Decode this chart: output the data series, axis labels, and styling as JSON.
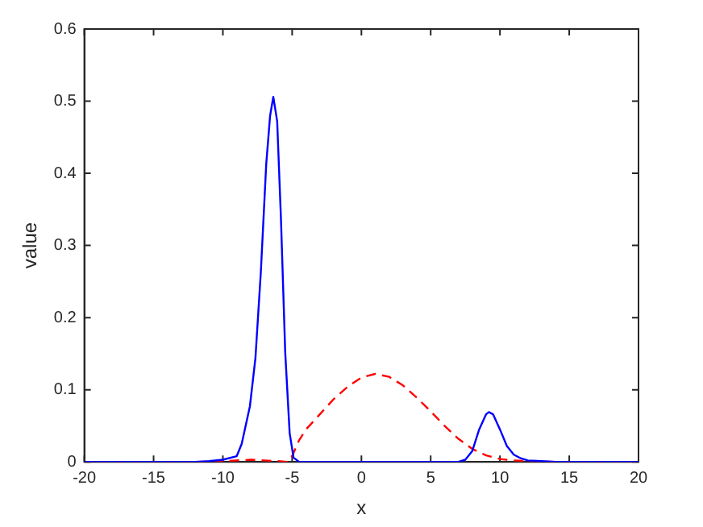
{
  "chart_data": {
    "type": "line",
    "xlabel": "x",
    "ylabel": "value",
    "xlim": [
      -20,
      20
    ],
    "xticks": [
      -20,
      -15,
      -10,
      -5,
      0,
      5,
      10,
      15,
      20
    ],
    "ylim": [
      0,
      0.6
    ],
    "yticks": [
      0,
      0.1,
      0.2,
      0.3,
      0.4,
      0.5,
      0.6
    ],
    "grid": false,
    "legend": false,
    "marker": "none",
    "series": [
      {
        "color": "#0000ff",
        "line_style": "solid",
        "x": [
          -20,
          -12,
          -11,
          -10,
          -9,
          -8.64,
          -8.05,
          -7.65,
          -7.26,
          -6.87,
          -6.59,
          -6.36,
          -6.08,
          -5.81,
          -5.5,
          -5.18,
          -4.9,
          -4.5,
          7,
          7.5,
          8,
          8.5,
          9,
          9.2,
          9.5,
          10,
          10.5,
          11,
          11.5,
          12,
          13,
          14,
          20
        ],
        "values": [
          0,
          0,
          0.001,
          0.003,
          0.008,
          0.025,
          0.077,
          0.144,
          0.263,
          0.413,
          0.48,
          0.506,
          0.472,
          0.338,
          0.152,
          0.04,
          0.006,
          0,
          0,
          0.003,
          0.015,
          0.045,
          0.066,
          0.069,
          0.066,
          0.045,
          0.022,
          0.01,
          0.005,
          0.002,
          0.001,
          0,
          0
        ]
      },
      {
        "color": "#ff0000",
        "line_style": "dashed",
        "x": [
          -20,
          -12,
          -10,
          -8,
          -7,
          -6,
          -5.3,
          -5,
          -4.5,
          -4,
          -3,
          -2,
          -1,
          0,
          1,
          2,
          3,
          4,
          5,
          6,
          7,
          8,
          9,
          10,
          11,
          12,
          14,
          20
        ],
        "values": [
          0,
          0,
          0.001,
          0.003,
          0.002,
          0.001,
          0,
          0.008,
          0.03,
          0.045,
          0.066,
          0.087,
          0.104,
          0.117,
          0.122,
          0.118,
          0.106,
          0.089,
          0.07,
          0.05,
          0.032,
          0.018,
          0.009,
          0.004,
          0.002,
          0.001,
          0,
          0
        ]
      }
    ]
  }
}
